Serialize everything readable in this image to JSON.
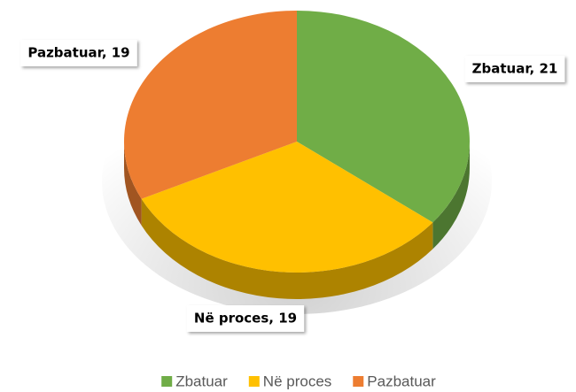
{
  "chart_data": {
    "type": "pie",
    "categories": [
      "Zbatuar",
      "Në proces",
      "Pazbatuar"
    ],
    "values": [
      21,
      19,
      19
    ],
    "value_labels": [
      "Zbatuar, 21",
      "Në proces, 19",
      "Pazbatuar, 19"
    ],
    "colors": [
      "#70ad47",
      "#ffc000",
      "#ed7d31"
    ],
    "legend": "bottom"
  }
}
